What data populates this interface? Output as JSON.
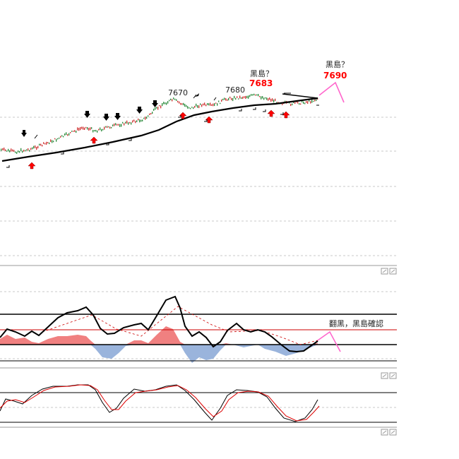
{
  "chart_data": [
    {
      "type": "line",
      "panel": "price",
      "annotations": [
        {
          "id": "a7670",
          "text": "7670"
        },
        {
          "id": "a7680",
          "text": "7680"
        },
        {
          "id": "b1",
          "text": "黑島？"
        },
        {
          "id": "b1v",
          "text": "7683"
        },
        {
          "id": "b2",
          "text": "黑島？"
        },
        {
          "id": "b2v",
          "text": "7690"
        }
      ],
      "colors": {
        "accent_red": "#ff0000",
        "projection": "#ff66cc",
        "moving_average": "#000000"
      },
      "grid": true
    },
    {
      "type": "area",
      "panel": "oscillator",
      "annotations": [
        {
          "id": "osc_note",
          "text": "翻黑，黑島確認"
        }
      ],
      "colors": {
        "positive_fill": "#f08080",
        "negative_fill": "#9ab4dc",
        "line": "#000000",
        "signal": "#cc0000",
        "projection": "#ff66cc"
      },
      "grid": true
    },
    {
      "type": "line",
      "panel": "stochastic",
      "series_colors": [
        "#000000",
        "#dd0000"
      ],
      "grid": true
    }
  ],
  "icons": {
    "panel_controls": [
      "restore-icon",
      "maximize-icon"
    ]
  }
}
